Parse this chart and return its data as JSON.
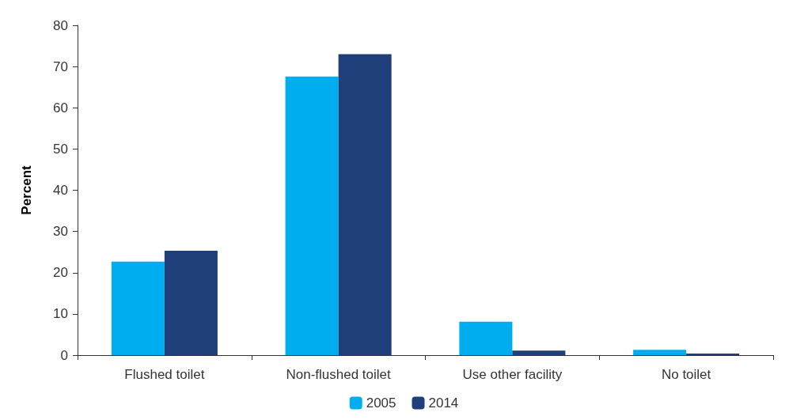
{
  "chart_data": {
    "type": "bar",
    "ylabel": "Percent",
    "categories": [
      "Flushed toilet",
      "Non-flushed toilet",
      "Use other facility",
      "No toilet"
    ],
    "series": [
      {
        "name": "2005",
        "color": "#00aeef",
        "values": [
          22.7,
          67.6,
          8.1,
          1.3
        ]
      },
      {
        "name": "2014",
        "color": "#1f3f7a",
        "values": [
          25.3,
          73.0,
          1.1,
          0.4
        ]
      }
    ],
    "ylim": [
      0,
      80
    ],
    "yticks": [
      0,
      10,
      20,
      30,
      40,
      50,
      60,
      70,
      80
    ],
    "grid": false,
    "legend": "bottom"
  }
}
